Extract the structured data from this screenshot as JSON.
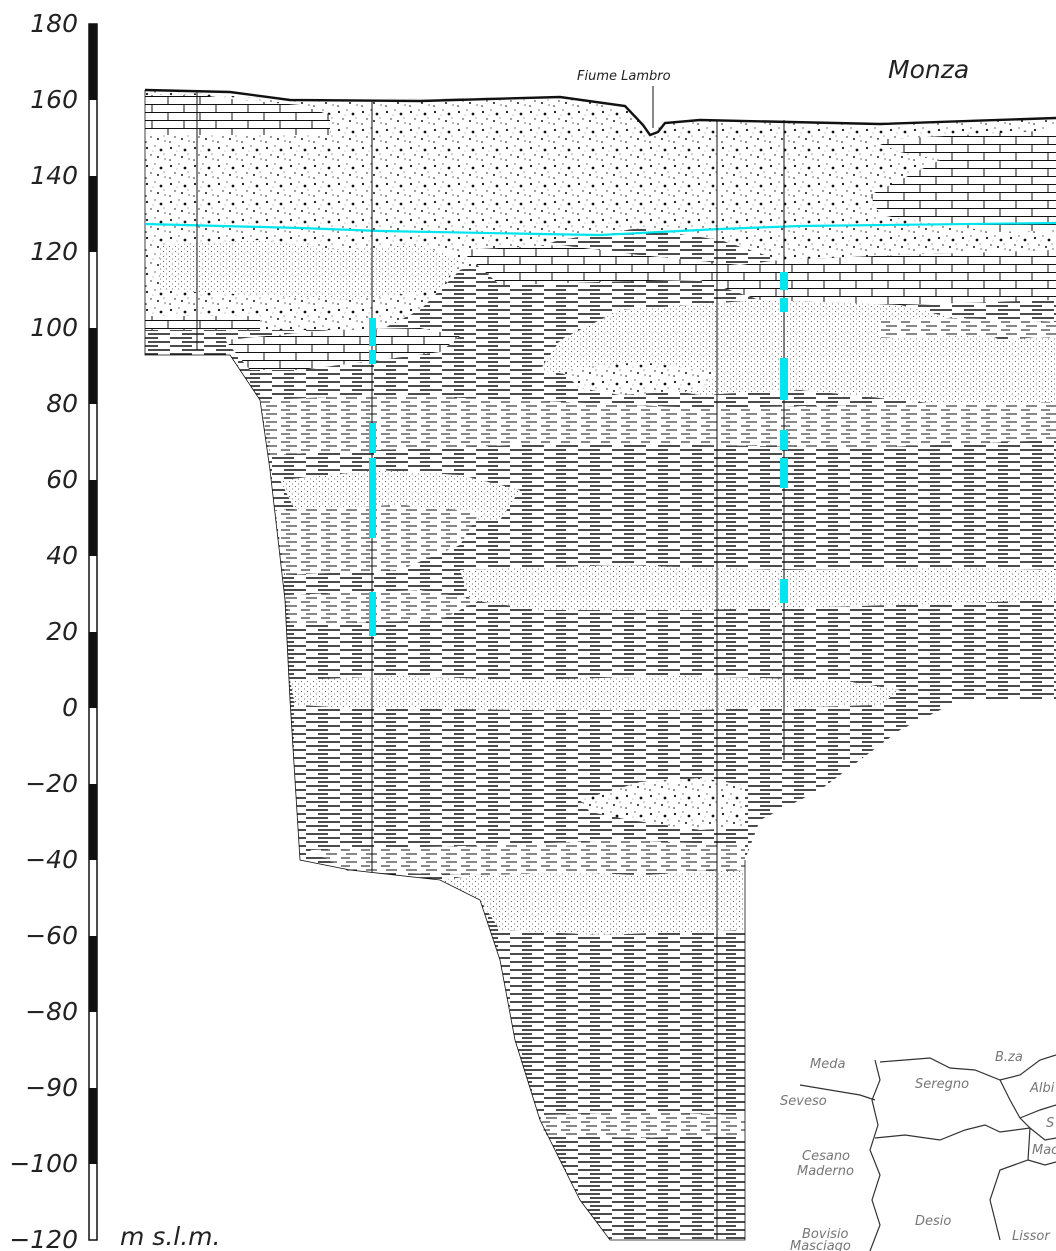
{
  "axis": {
    "unit_label": "m s.l.m.",
    "ticks": [
      {
        "value": 180,
        "label": "180"
      },
      {
        "value": 160,
        "label": "160"
      },
      {
        "value": 140,
        "label": "140"
      },
      {
        "value": 120,
        "label": "120"
      },
      {
        "value": 100,
        "label": "100"
      },
      {
        "value": 80,
        "label": "80"
      },
      {
        "value": 60,
        "label": "60"
      },
      {
        "value": 40,
        "label": "40"
      },
      {
        "value": 20,
        "label": "20"
      },
      {
        "value": 0,
        "label": "0"
      },
      {
        "value": -20,
        "label": "−20"
      },
      {
        "value": -40,
        "label": "−40"
      },
      {
        "value": -60,
        "label": "−60"
      },
      {
        "value": -80,
        "label": "−80"
      },
      {
        "value": -90,
        "label": "−90"
      },
      {
        "value": -100,
        "label": "−100"
      },
      {
        "value": -120,
        "label": "−120"
      }
    ]
  },
  "labels": {
    "river": "Fiume Lambro",
    "town": "Monza"
  },
  "inset_map": {
    "places": [
      "Meda",
      "B.za",
      "Albi",
      "Seregno",
      "Seveso",
      "S",
      "Mac",
      "Cesano",
      "Maderno",
      "Desio",
      "Bovisio",
      "Masciago",
      "Lissor"
    ]
  },
  "colors": {
    "water_table": "#00e5ee",
    "screen": "#00e5ee",
    "lines": "#111111"
  }
}
